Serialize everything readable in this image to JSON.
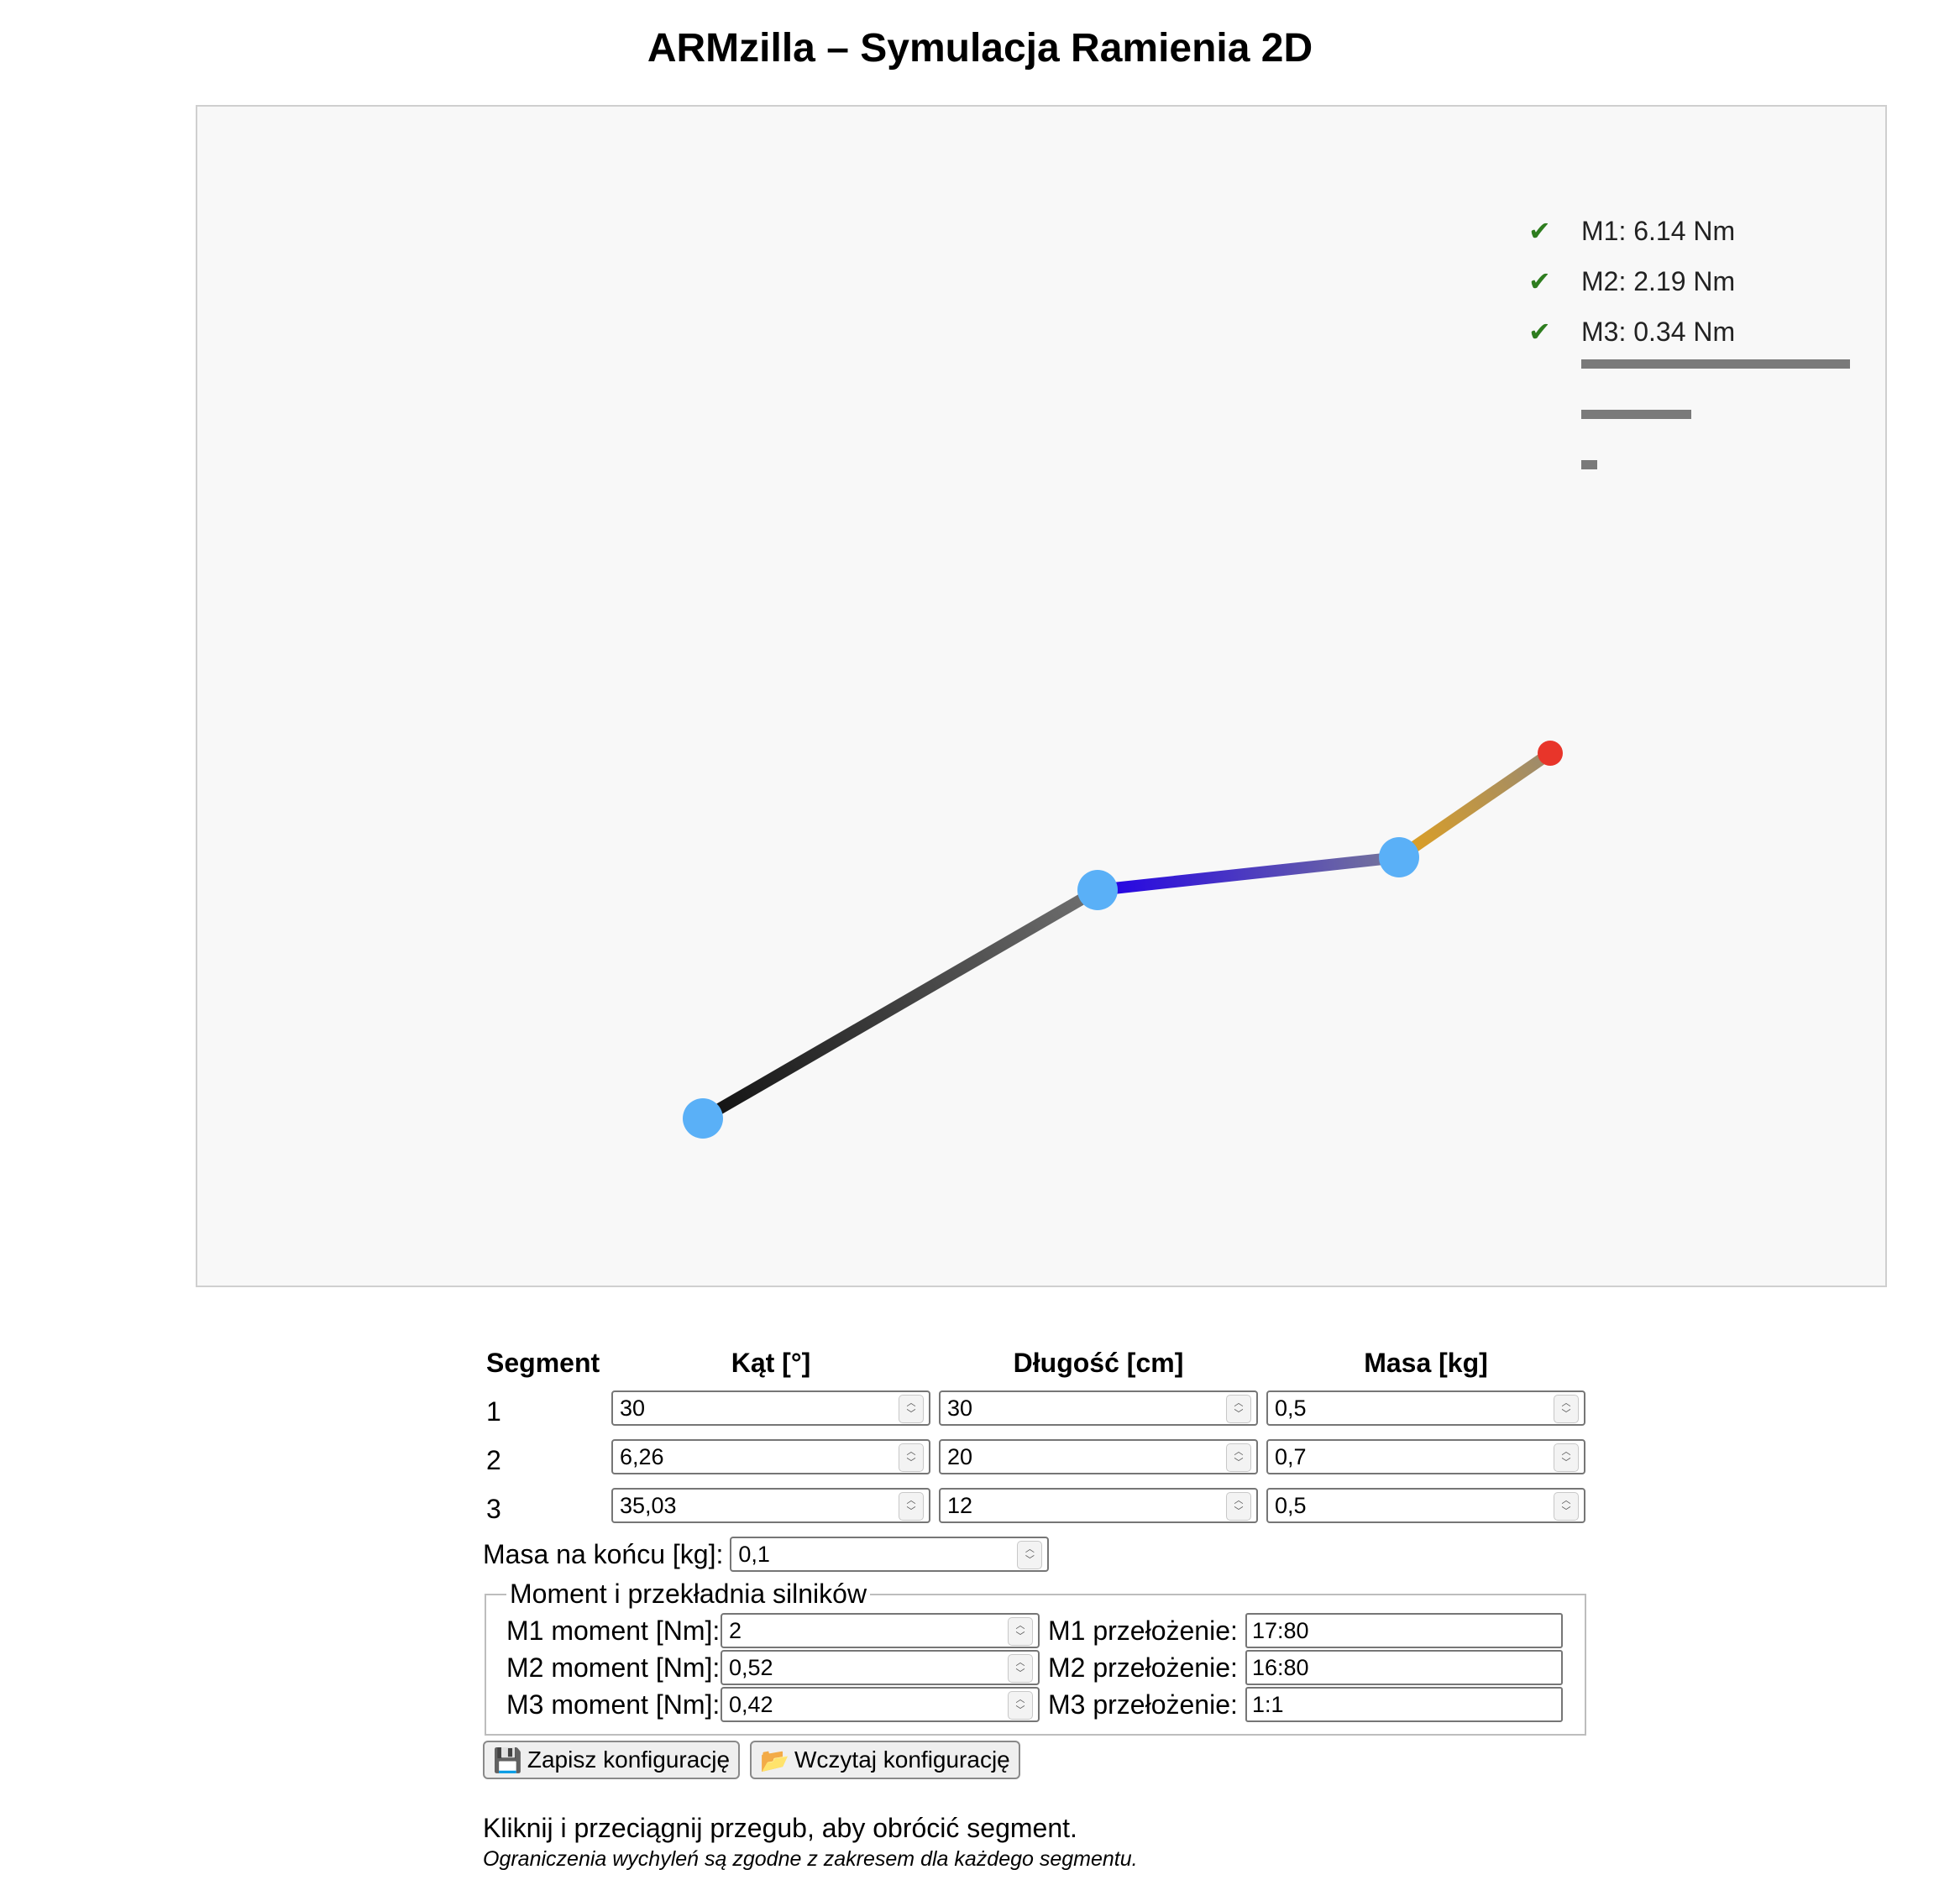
{
  "title": "ARMzilla – Symulacja Ramienia 2D",
  "legend": [
    {
      "check": "✔",
      "label": "M1: 6.14 Nm",
      "ratio": 1.0
    },
    {
      "check": "✔",
      "label": "M2: 2.19 Nm",
      "ratio": 0.41
    },
    {
      "check": "✔",
      "label": "M3: 0.34 Nm",
      "ratio": 0.06
    }
  ],
  "colors": {
    "joint": "#5ab0f7",
    "end_effector": "#e8352a",
    "segment1": [
      "#111111",
      "#707070"
    ],
    "segment2": [
      "#2200e6",
      "#777799"
    ],
    "segment3": [
      "#e0a020",
      "#9a8a70"
    ],
    "check": "#2e7d1f",
    "bar": "#7a7a7a"
  },
  "table": {
    "headers": {
      "segment": "Segment",
      "angle": "Kąt [°]",
      "length": "Długość [cm]",
      "mass": "Masa [kg]"
    },
    "rows": [
      {
        "num": "1",
        "angle": "30",
        "length": "30",
        "mass": "0,5"
      },
      {
        "num": "2",
        "angle": "6,26",
        "length": "20",
        "mass": "0,7"
      },
      {
        "num": "3",
        "angle": "35,03",
        "length": "12",
        "mass": "0,5"
      }
    ]
  },
  "end_mass": {
    "label": "Masa na końcu [kg]:",
    "value": "0,1"
  },
  "motors": {
    "legend": "Moment i przekładnia silników",
    "rows": [
      {
        "moment_label": "M1 moment [Nm]:",
        "moment": "2",
        "gear_label": "M1 przełożenie:",
        "gear": "17:80"
      },
      {
        "moment_label": "M2 moment [Nm]:",
        "moment": "0,52",
        "gear_label": "M2 przełożenie:",
        "gear": "16:80"
      },
      {
        "moment_label": "M3 moment [Nm]:",
        "moment": "0,42",
        "gear_label": "M3 przełożenie:",
        "gear": "1:1"
      }
    ]
  },
  "buttons": {
    "save": {
      "icon": "💾",
      "label": "Zapisz konfigurację"
    },
    "load": {
      "icon": "📂",
      "label": "Wczytaj konfigurację"
    }
  },
  "hint": "Kliknij i przeciągnij przegub, aby obrócić segment.",
  "note": "Ograniczenia wychyleń są zgodne z zakresem dla każdego segmentu."
}
